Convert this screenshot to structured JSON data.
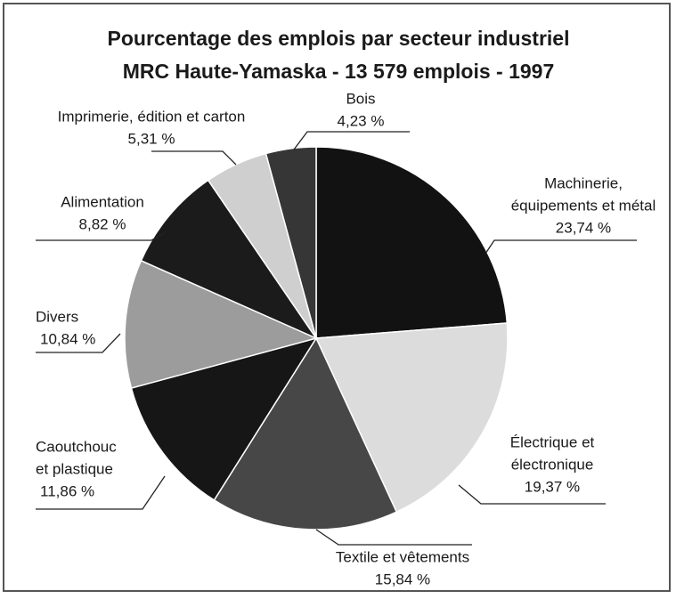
{
  "chart_data": {
    "type": "pie",
    "title": "Pourcentage des emplois par secteur industriel",
    "subtitle": "MRC Haute-Yamaska - 13 579 emplois - 1997",
    "categories": [
      [
        "Machinerie,",
        "équipements et métal"
      ],
      [
        "Électrique et",
        "électronique"
      ],
      [
        "Textile et vêtements"
      ],
      [
        "Caoutchouc",
        "et plastique"
      ],
      [
        "Divers"
      ],
      [
        "Alimentation"
      ],
      [
        "Imprimerie, édition et carton"
      ],
      [
        "Bois"
      ]
    ],
    "values": [
      23.74,
      19.37,
      15.84,
      11.86,
      10.84,
      8.82,
      5.31,
      4.23
    ],
    "value_labels": [
      "23,74 %",
      "19,37 %",
      "15,84 %",
      "11,86 %",
      "10,84 %",
      "8,82 %",
      "5,31 %",
      "4,23 %"
    ],
    "colors": [
      "#121212",
      "#dcdcdc",
      "#474747",
      "#161616",
      "#9c9c9c",
      "#1b1b1b",
      "#cfcfcf",
      "#363636"
    ]
  }
}
